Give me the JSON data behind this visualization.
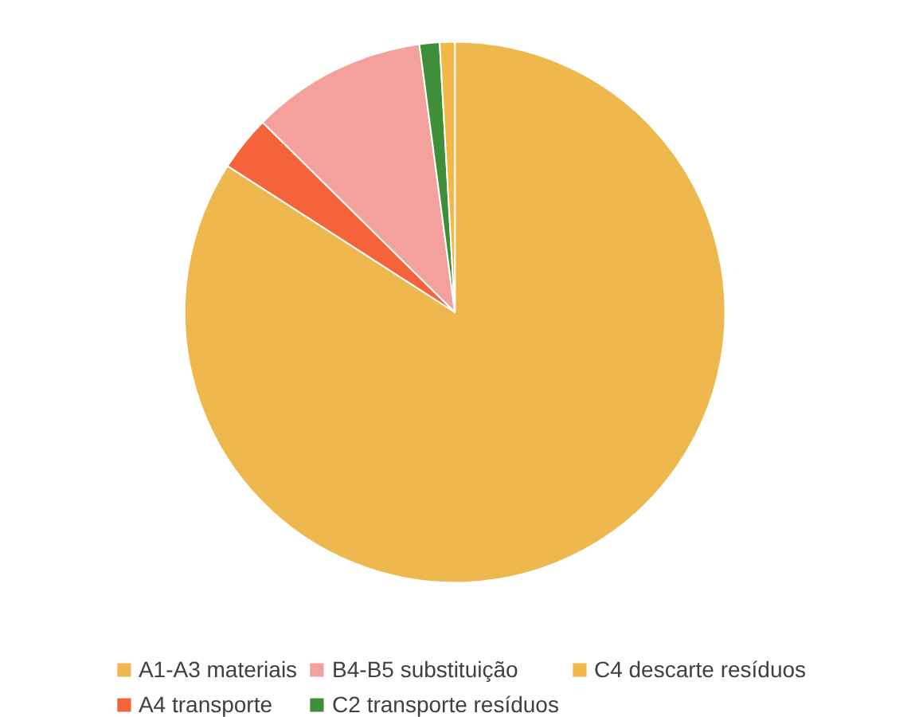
{
  "chart_data": {
    "type": "pie",
    "categories": [
      "A1-A3 materiais",
      "A4 transporte",
      "B4-B5 substituição",
      "C2 transporte resíduos",
      "C4 descarte resíduos"
    ],
    "values": [
      84.1,
      3.3,
      10.5,
      1.2,
      0.9
    ],
    "colors": [
      "#eeb84f",
      "#f4633a",
      "#f4a09c",
      "#3f8f3a",
      "#f0b849"
    ],
    "legend": "bottom"
  }
}
